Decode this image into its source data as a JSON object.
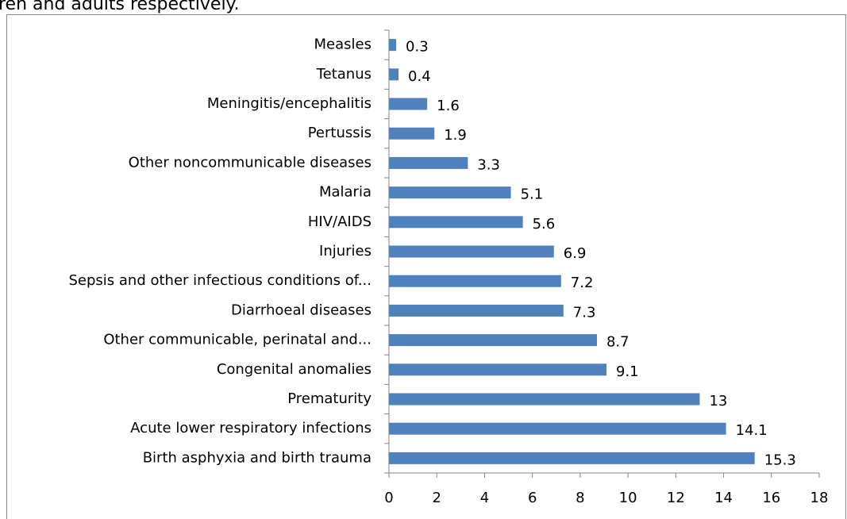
{
  "caption_fragment": "ren and adults respectively.",
  "chart_data": {
    "type": "bar",
    "orientation": "horizontal",
    "categories": [
      "Measles",
      "Tetanus",
      "Meningitis/encephalitis",
      "Pertussis",
      "Other noncommunicable diseases",
      "Malaria",
      "HIV/AIDS",
      "Injuries",
      "Sepsis and other infectious conditions of...",
      "Diarrhoeal diseases",
      "Other communicable, perinatal and...",
      "Congenital anomalies",
      "Prematurity",
      "Acute lower respiratory infections",
      "Birth asphyxia and birth trauma"
    ],
    "values": [
      0.3,
      0.4,
      1.6,
      1.9,
      3.3,
      5.1,
      5.6,
      6.9,
      7.2,
      7.3,
      8.7,
      9.1,
      13,
      14.1,
      15.3
    ],
    "color": "#4f81bd",
    "xlim": [
      0,
      18
    ],
    "xticks": [
      0,
      2,
      4,
      6,
      8,
      10,
      12,
      14,
      16,
      18
    ],
    "grid": false
  }
}
